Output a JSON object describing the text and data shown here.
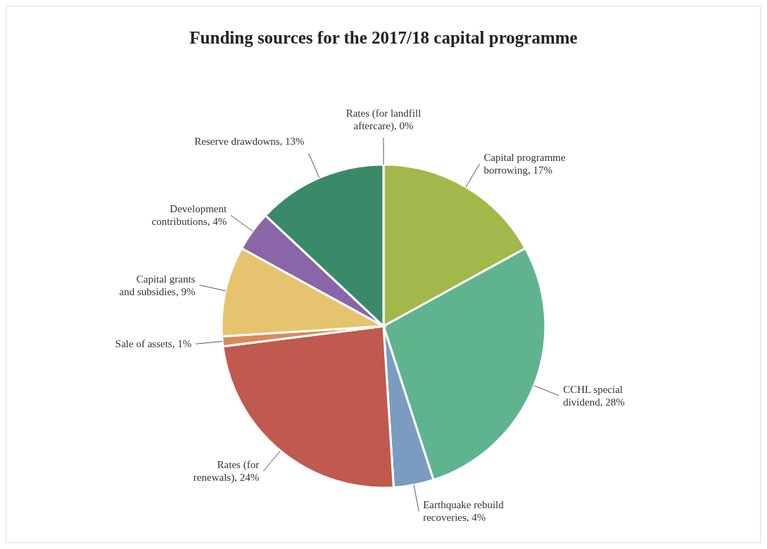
{
  "chart_data": {
    "type": "pie",
    "title": "Funding sources for the 2017/18 capital programme",
    "categories": [
      "Rates (for landfill aftercare)",
      "Capital programme borrowing",
      "CCHL special dividend",
      "Earthquake rebuild recoveries",
      "Rates (for renewals)",
      "Sale of assets",
      "Capital grants and subsidies",
      "Development contributions",
      "Reserve drawdowns"
    ],
    "values": [
      0,
      17,
      28,
      4,
      24,
      1,
      9,
      4,
      13
    ],
    "colors": [
      "#4a6fa5",
      "#a3b84a",
      "#5fb48f",
      "#7a9cc0",
      "#c0594e",
      "#d98a5c",
      "#e6c36e",
      "#8a66a8",
      "#3a8a6a"
    ],
    "value_labels": [
      ", 0%",
      ", 17%",
      ", 28%",
      ", 4%",
      ", 24%",
      ", 1%",
      ", 9%",
      ", 4%",
      ", 13%"
    ]
  }
}
